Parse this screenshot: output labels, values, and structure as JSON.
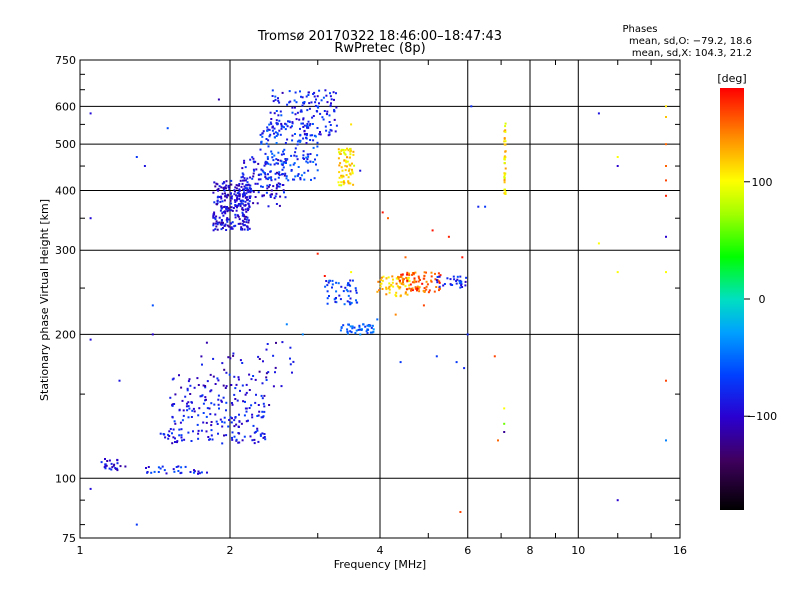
{
  "chart_data": {
    "type": "scatter",
    "title": "Tromsø 20170322 18:46:00–18:47:43",
    "subtitle": "RwPretec (8p)",
    "xlabel": "Frequency [MHz]",
    "ylabel": "Stationary phase Virtual Height [km]",
    "xscale": "log",
    "yscale": "log",
    "xlim": [
      1,
      16
    ],
    "ylim": [
      75,
      750
    ],
    "xticks": [
      1,
      2,
      4,
      6,
      8,
      10,
      16
    ],
    "yticks": [
      75,
      100,
      200,
      300,
      400,
      500,
      600,
      750
    ],
    "grid": true,
    "stats": {
      "heading": "Phases",
      "line1": "mean, sd,O: −79.2, 18.6",
      "line2": "mean, sd,X: 104.3, 21.2"
    },
    "colorbar": {
      "label": "[deg]",
      "range": [
        -180,
        180
      ],
      "ticks": [
        100,
        0,
        -100
      ]
    },
    "clusters": [
      {
        "freq": [
          1.85,
          2.2
        ],
        "height": [
          330,
          420
        ],
        "phase": -95,
        "n": 260
      },
      {
        "freq": [
          2.1,
          2.6
        ],
        "height": [
          370,
          470
        ],
        "phase": -90,
        "n": 120
      },
      {
        "freq": [
          2.3,
          3.0
        ],
        "height": [
          420,
          560
        ],
        "phase": -70,
        "n": 160
      },
      {
        "freq": [
          2.4,
          3.3
        ],
        "height": [
          520,
          650
        ],
        "phase": -80,
        "n": 140
      },
      {
        "freq": [
          3.3,
          3.55
        ],
        "height": [
          410,
          490
        ],
        "phase": 110,
        "n": 70
      },
      {
        "freq": [
          3.1,
          3.6
        ],
        "height": [
          230,
          260
        ],
        "phase": -70,
        "n": 50
      },
      {
        "freq": [
          3.3,
          3.9
        ],
        "height": [
          200,
          210
        ],
        "phase": -55,
        "n": 45
      },
      {
        "freq": [
          3.95,
          4.6
        ],
        "height": [
          240,
          265
        ],
        "phase": 120,
        "n": 60
      },
      {
        "freq": [
          4.3,
          5.3
        ],
        "height": [
          245,
          270
        ],
        "phase": 155,
        "n": 80
      },
      {
        "freq": [
          5.2,
          6.0
        ],
        "height": [
          250,
          265
        ],
        "phase": -80,
        "n": 30
      },
      {
        "freq": [
          1.35,
          1.8
        ],
        "height": [
          102,
          106
        ],
        "phase": -80,
        "n": 30
      },
      {
        "freq": [
          1.1,
          1.25
        ],
        "height": [
          104,
          110
        ],
        "phase": -95,
        "n": 25
      },
      {
        "freq": [
          1.45,
          2.4
        ],
        "height": [
          118,
          127
        ],
        "phase": -90,
        "n": 70
      },
      {
        "freq": [
          1.5,
          2.35
        ],
        "height": [
          128,
          140
        ],
        "phase": -85,
        "n": 70
      },
      {
        "freq": [
          1.5,
          2.4
        ],
        "height": [
          140,
          165
        ],
        "phase": -90,
        "n": 90
      },
      {
        "freq": [
          1.75,
          2.7
        ],
        "height": [
          155,
          195
        ],
        "phase": -100,
        "n": 40
      },
      {
        "freq": [
          7.1,
          7.15
        ],
        "height": [
          390,
          570
        ],
        "phase": 110,
        "n": 40
      }
    ],
    "points": [
      [
        1.05,
        350,
        -95
      ],
      [
        1.05,
        95,
        -95
      ],
      [
        1.05,
        580,
        -95
      ],
      [
        1.3,
        470,
        -70
      ],
      [
        1.35,
        450,
        -90
      ],
      [
        1.5,
        540,
        -60
      ],
      [
        1.4,
        230,
        -60
      ],
      [
        1.4,
        200,
        -100
      ],
      [
        1.05,
        195,
        -95
      ],
      [
        1.3,
        80,
        -70
      ],
      [
        1.2,
        160,
        -90
      ],
      [
        1.9,
        620,
        -110
      ],
      [
        4.05,
        360,
        175
      ],
      [
        4.15,
        350,
        150
      ],
      [
        4.5,
        290,
        150
      ],
      [
        5.1,
        330,
        175
      ],
      [
        5.5,
        320,
        170
      ],
      [
        5.85,
        290,
        175
      ],
      [
        6.3,
        370,
        -80
      ],
      [
        6.5,
        370,
        -70
      ],
      [
        6.1,
        600,
        -75
      ],
      [
        5.8,
        85,
        160
      ],
      [
        6.8,
        180,
        160
      ],
      [
        4.4,
        175,
        -70
      ],
      [
        5.2,
        180,
        -70
      ],
      [
        5.7,
        175,
        -70
      ],
      [
        6.9,
        120,
        150
      ],
      [
        7.1,
        140,
        100
      ],
      [
        7.1,
        130,
        60
      ],
      [
        7.1,
        125,
        -120
      ],
      [
        11.0,
        580,
        -90
      ],
      [
        11.0,
        310,
        100
      ],
      [
        12.0,
        470,
        100
      ],
      [
        12.0,
        450,
        -100
      ],
      [
        12.0,
        270,
        100
      ],
      [
        12.0,
        90,
        -100
      ],
      [
        15.0,
        600,
        110
      ],
      [
        15.0,
        570,
        120
      ],
      [
        15.0,
        500,
        150
      ],
      [
        15.0,
        450,
        150
      ],
      [
        15.0,
        420,
        160
      ],
      [
        15.0,
        390,
        170
      ],
      [
        15.0,
        320,
        -100
      ],
      [
        15.0,
        270,
        100
      ],
      [
        15.0,
        160,
        160
      ],
      [
        15.0,
        120,
        -40
      ],
      [
        3.65,
        440,
        -90
      ],
      [
        3.0,
        630,
        -100
      ],
      [
        2.55,
        640,
        -110
      ],
      [
        3.5,
        550,
        110
      ],
      [
        3.0,
        295,
        170
      ],
      [
        3.1,
        265,
        175
      ],
      [
        3.5,
        270,
        100
      ],
      [
        3.95,
        215,
        -50
      ],
      [
        3.7,
        210,
        -50
      ],
      [
        2.6,
        210,
        -40
      ],
      [
        2.8,
        200,
        -40
      ],
      [
        4.3,
        220,
        140
      ],
      [
        4.9,
        230,
        160
      ],
      [
        5.4,
        255,
        -70
      ],
      [
        6.0,
        200,
        -80
      ],
      [
        5.9,
        170,
        -80
      ]
    ]
  }
}
